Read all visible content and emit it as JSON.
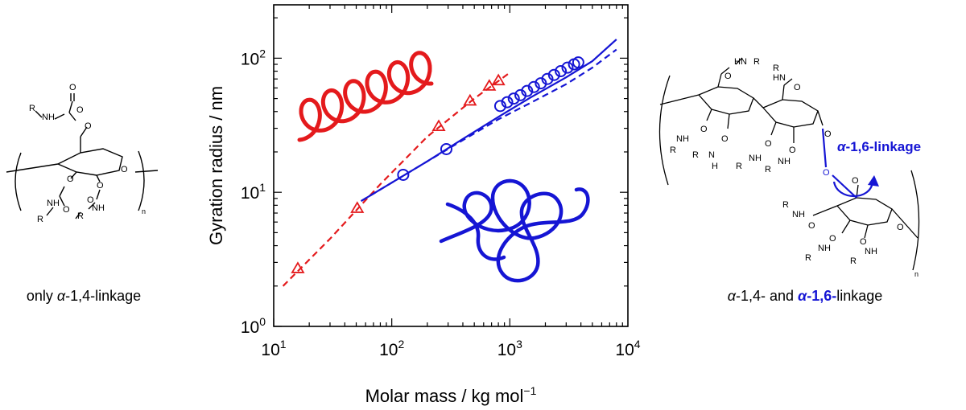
{
  "left_label": {
    "prefix": "only ",
    "alpha": "α",
    "suffix": "-1,4-linkage"
  },
  "right_label": {
    "alpha": "α",
    "part1": "-1,4- and ",
    "blue_alpha": "α",
    "blue_mid": "-1,6-",
    "tail": "linkage"
  },
  "right_annotation": {
    "alpha": "α",
    "rest": "-1,6-linkage"
  },
  "chem": {
    "n": "n",
    "R": "R",
    "NH": "NH",
    "HN": "HN",
    "O": "O",
    "H": "H",
    "N": "N"
  },
  "colors": {
    "red": "#e41a1c",
    "blue": "#1515d4",
    "black": "#000000"
  },
  "icons": [
    "helix-icon",
    "random-coil-icon"
  ],
  "chart_data": {
    "type": "scatter",
    "title": "",
    "xlabel": "Molar mass / kg mol",
    "xlabel_sup": "−1",
    "ylabel": "Gyration radius / nm",
    "xscale": "log",
    "yscale": "log",
    "xlim": [
      10,
      10000
    ],
    "ylim": [
      1,
      250
    ],
    "xticks": [
      {
        "base": "10",
        "exp": "1",
        "v": 10
      },
      {
        "base": "10",
        "exp": "2",
        "v": 100
      },
      {
        "base": "10",
        "exp": "3",
        "v": 1000
      },
      {
        "base": "10",
        "exp": "4",
        "v": 10000
      }
    ],
    "yticks": [
      {
        "base": "10",
        "exp": "0",
        "v": 1
      },
      {
        "base": "10",
        "exp": "1",
        "v": 10
      },
      {
        "base": "10",
        "exp": "2",
        "v": 100
      }
    ],
    "series": [
      {
        "marker": "triangle",
        "color": "#e41a1c",
        "x": [
          16,
          51,
          250,
          460,
          670,
          800
        ],
        "y": [
          2.7,
          7.6,
          31,
          48,
          62,
          68
        ]
      },
      {
        "marker": "circle",
        "color": "#1515d4",
        "x": [
          125,
          290,
          830,
          950,
          1080,
          1230,
          1400,
          1600,
          1830,
          2080,
          2370,
          2700,
          3080,
          3500,
          3800
        ],
        "y": [
          13.5,
          21,
          44,
          47,
          50,
          53,
          57,
          61,
          65,
          70,
          75,
          80,
          85,
          90,
          93
        ]
      }
    ],
    "curves": [
      {
        "style": "dashed",
        "color": "#e41a1c",
        "x": [
          12,
          30,
          80,
          200,
          500,
          1000
        ],
        "y": [
          2.0,
          4.5,
          11.5,
          26,
          50,
          78
        ]
      },
      {
        "style": "solid",
        "color": "#1515d4",
        "x": [
          55,
          100,
          200,
          400,
          800,
          1500,
          3000,
          5000,
          8000
        ],
        "y": [
          8.6,
          11.8,
          17,
          25,
          36.5,
          51,
          72,
          95,
          138
        ]
      },
      {
        "style": "dashed",
        "color": "#1515d4",
        "x": [
          55,
          100,
          200,
          400,
          800,
          1500,
          3000,
          5000,
          8000
        ],
        "y": [
          8.6,
          11.8,
          17,
          24.5,
          35,
          46.5,
          64,
          85,
          116
        ]
      }
    ]
  }
}
